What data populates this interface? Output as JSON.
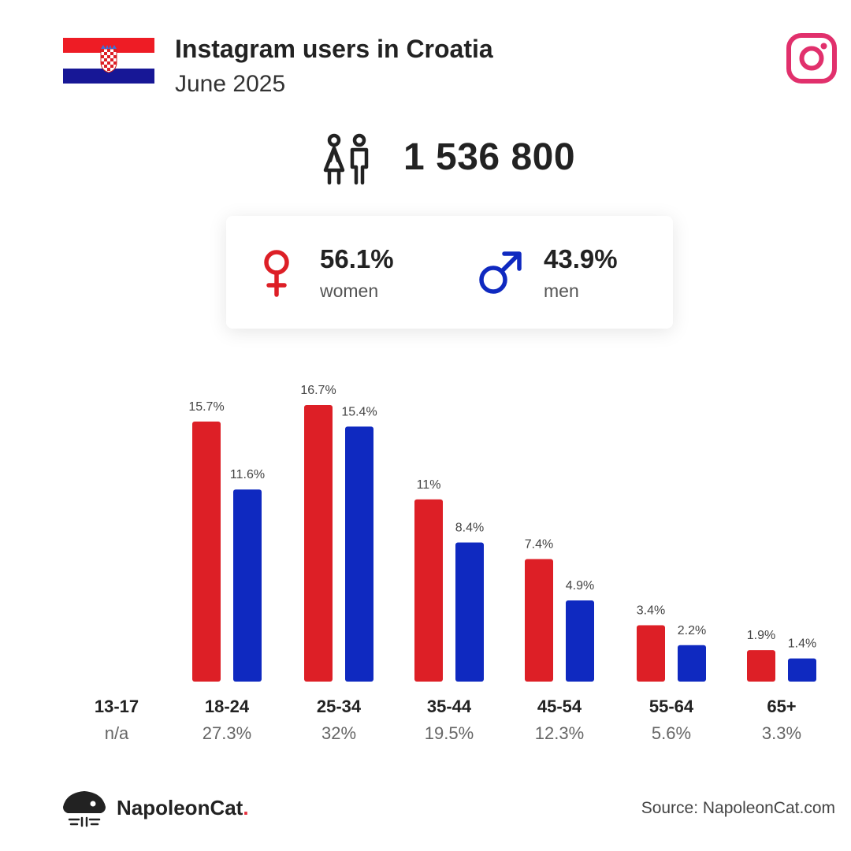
{
  "header": {
    "title": "Instagram users in Croatia",
    "subtitle": "June 2025",
    "flag_icon": "croatia-flag-icon",
    "platform_icon": "instagram-icon"
  },
  "total_users": "1 536 800",
  "gender": {
    "women": {
      "pct": "56.1%",
      "label": "women"
    },
    "men": {
      "pct": "43.9%",
      "label": "men"
    }
  },
  "age_groups": [
    {
      "name": "13-17",
      "share": "n/a"
    },
    {
      "name": "18-24",
      "share": "27.3%"
    },
    {
      "name": "25-34",
      "share": "32%"
    },
    {
      "name": "35-44",
      "share": "19.5%"
    },
    {
      "name": "45-54",
      "share": "12.3%"
    },
    {
      "name": "55-64",
      "share": "5.6%"
    },
    {
      "name": "65+",
      "share": "3.3%"
    }
  ],
  "chart_data": {
    "type": "bar",
    "categories": [
      "13-17",
      "18-24",
      "25-34",
      "35-44",
      "45-54",
      "55-64",
      "65+"
    ],
    "series": [
      {
        "name": "women",
        "values": [
          null,
          15.7,
          16.7,
          11,
          7.4,
          3.4,
          1.9
        ],
        "labels": [
          "",
          "15.7%",
          "16.7%",
          "11%",
          "7.4%",
          "3.4%",
          "1.9%"
        ]
      },
      {
        "name": "men",
        "values": [
          null,
          11.6,
          15.4,
          8.4,
          4.9,
          2.2,
          1.4
        ],
        "labels": [
          "",
          "11.6%",
          "15.4%",
          "8.4%",
          "4.9%",
          "2.2%",
          "1.4%"
        ]
      }
    ],
    "ylim": [
      0,
      16.7
    ],
    "grid": false
  },
  "colors": {
    "women": "#dd1f26",
    "men": "#0f29c0",
    "instagram": "#e1306c"
  },
  "footer": {
    "brand_first": "NapoleonCat",
    "brand_dot": ".",
    "source": "Source: NapoleonCat.com"
  }
}
